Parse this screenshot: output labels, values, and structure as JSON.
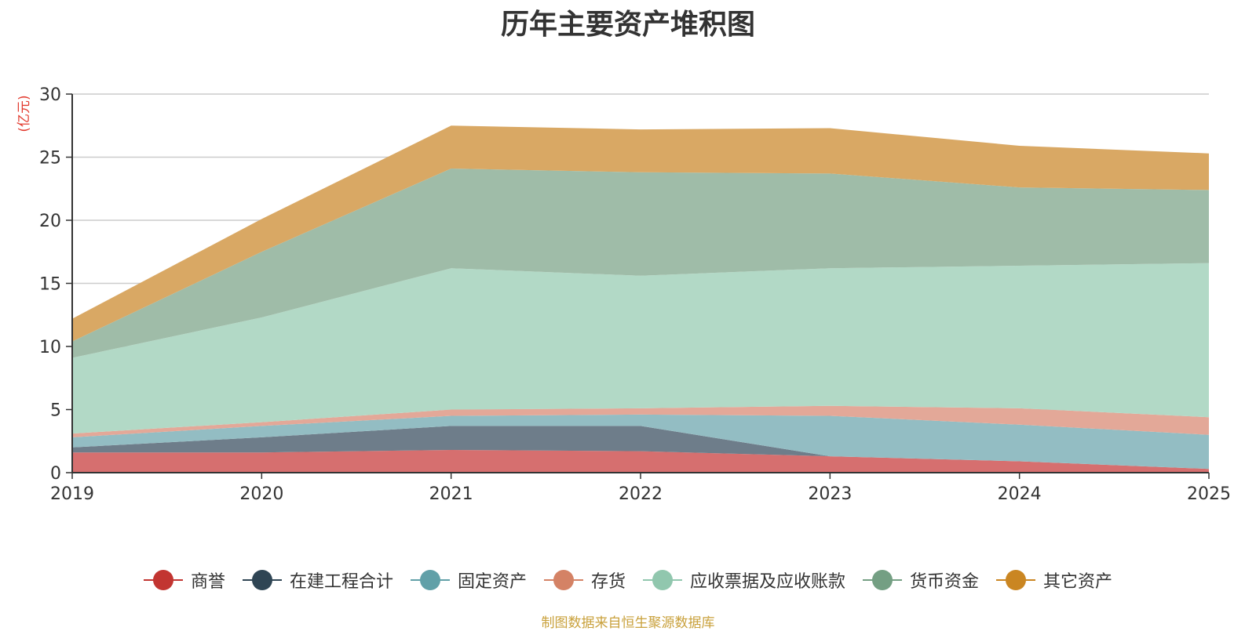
{
  "chart_data": {
    "type": "area",
    "stacked": true,
    "title": "历年主要资产堆积图",
    "ylabel": "(亿元)",
    "ylim": [
      0,
      30
    ],
    "yticks": [
      0,
      5,
      10,
      15,
      20,
      25,
      30
    ],
    "grid": true,
    "legend_position": "bottom",
    "x": [
      "2019",
      "2020",
      "2021",
      "2022",
      "2023",
      "2024",
      "2025"
    ],
    "series": [
      {
        "name": "商誉",
        "color": "#c23531",
        "fill": "#d66f6f",
        "values": [
          1.6,
          1.6,
          1.8,
          1.7,
          1.3,
          0.9,
          0.3
        ]
      },
      {
        "name": "在建工程合计",
        "color": "#2f4554",
        "fill": "#6e7d8a",
        "values": [
          0.4,
          1.2,
          1.9,
          2.0,
          0.0,
          0.0,
          0.0
        ]
      },
      {
        "name": "固定资产",
        "color": "#61a0a8",
        "fill": "#93bdc3",
        "values": [
          0.8,
          0.9,
          0.8,
          0.9,
          3.2,
          2.9,
          2.7
        ]
      },
      {
        "name": "存货",
        "color": "#d48265",
        "fill": "#e3a898",
        "values": [
          0.3,
          0.3,
          0.5,
          0.5,
          0.8,
          1.3,
          1.4
        ]
      },
      {
        "name": "应收票据及应收账款",
        "color": "#91c7ae",
        "fill": "#b2d9c6",
        "values": [
          6.0,
          8.3,
          11.2,
          10.5,
          10.9,
          11.3,
          12.2
        ]
      },
      {
        "name": "货币资金",
        "color": "#749f83",
        "fill": "#9fbca8",
        "values": [
          1.3,
          5.2,
          7.9,
          8.2,
          7.5,
          6.2,
          5.8
        ]
      },
      {
        "name": "其它资产",
        "color": "#ca8622",
        "fill": "#d9a864",
        "values": [
          1.8,
          2.6,
          3.4,
          3.4,
          3.6,
          3.3,
          2.9
        ]
      }
    ]
  },
  "source_note": "制图数据来自恒生聚源数据库"
}
